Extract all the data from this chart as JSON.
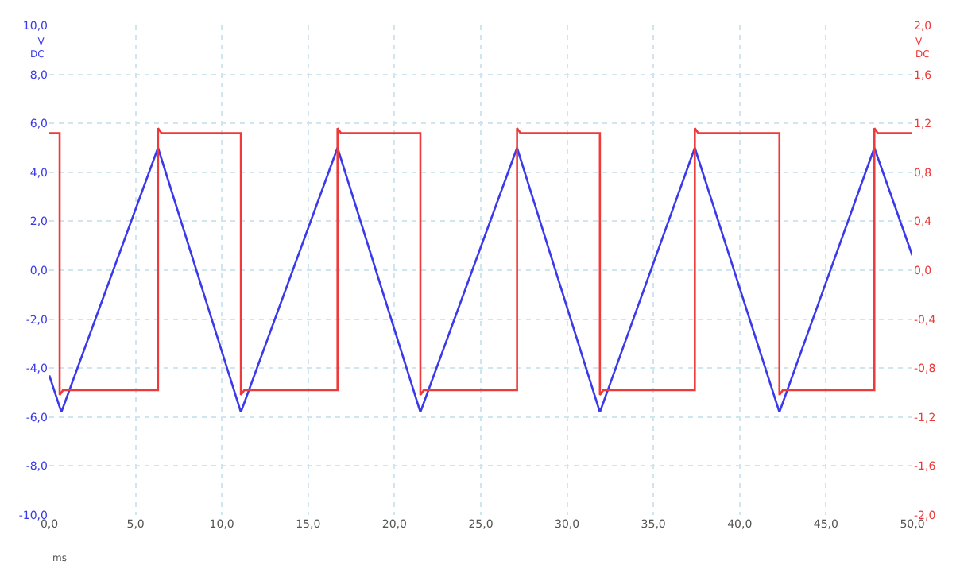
{
  "chart_data": {
    "type": "line",
    "xlabel": "ms",
    "ylabel": "V\nDC",
    "y2label": "V\nDC",
    "xlim": [
      0,
      50
    ],
    "xticks": [
      {
        "value": 0,
        "label": "0,0"
      },
      {
        "value": 5,
        "label": "5,0"
      },
      {
        "value": 10,
        "label": "10,0"
      },
      {
        "value": 15,
        "label": "15,0"
      },
      {
        "value": 20,
        "label": "20,0"
      },
      {
        "value": 25,
        "label": "25,0"
      },
      {
        "value": 30,
        "label": "30,0"
      },
      {
        "value": 35,
        "label": "35,0"
      },
      {
        "value": 40,
        "label": "40,0"
      },
      {
        "value": 45,
        "label": "45,0"
      },
      {
        "value": 50,
        "label": "50,0"
      }
    ],
    "ylim": [
      -10,
      10
    ],
    "yticks": [
      {
        "value": -10,
        "label": "-10,0"
      },
      {
        "value": -8,
        "label": "-8,0"
      },
      {
        "value": -6,
        "label": "-6,0"
      },
      {
        "value": -4,
        "label": "-4,0"
      },
      {
        "value": -2,
        "label": "-2,0"
      },
      {
        "value": 0,
        "label": "0,0"
      },
      {
        "value": 2,
        "label": "2,0"
      },
      {
        "value": 4,
        "label": "4,0"
      },
      {
        "value": 6,
        "label": "6,0"
      },
      {
        "value": 8,
        "label": "8,0"
      },
      {
        "value": 10,
        "label": "10,0"
      }
    ],
    "y2lim": [
      -2,
      2
    ],
    "y2ticks": [
      {
        "value": -2,
        "label": "-2,0"
      },
      {
        "value": -1.6,
        "label": "-1,6"
      },
      {
        "value": -1.2,
        "label": "-1,2"
      },
      {
        "value": -0.8,
        "label": "-0,8"
      },
      {
        "value": -0.4,
        "label": "-0,4"
      },
      {
        "value": 0,
        "label": "0,0"
      },
      {
        "value": 0.4,
        "label": "0,4"
      },
      {
        "value": 0.8,
        "label": "0,8"
      },
      {
        "value": 1.2,
        "label": "1,2"
      },
      {
        "value": 1.6,
        "label": "1,6"
      },
      {
        "value": 2,
        "label": "2,0"
      }
    ],
    "grid": true,
    "legend": false,
    "marker": "none",
    "line_style": "solid",
    "series": [
      {
        "color": "#3a3aea",
        "x": [
          0,
          0.7,
          6.3,
          11.1,
          16.7,
          21.5,
          27.1,
          31.9,
          37.4,
          42.3,
          47.8,
          50
        ],
        "values": [
          -4.3,
          -5.8,
          5.0,
          -5.8,
          5.0,
          -5.8,
          5.0,
          -5.8,
          5.0,
          -5.8,
          5.0,
          0.6
        ]
      },
      {
        "color": "#ee3a3a",
        "axis": "y2",
        "x": [
          0,
          0.6,
          0.6,
          0.8,
          6.3,
          6.3,
          6.5,
          11.1,
          11.1,
          11.3,
          16.7,
          16.7,
          16.9,
          21.5,
          21.5,
          21.7,
          27.1,
          27.1,
          27.3,
          31.9,
          31.9,
          32.1,
          37.4,
          37.4,
          37.6,
          42.3,
          42.3,
          42.5,
          47.8,
          47.8,
          48.0,
          50
        ],
        "values": [
          1.12,
          1.12,
          -1.02,
          -0.98,
          -0.98,
          1.16,
          1.12,
          1.12,
          -1.02,
          -0.98,
          -0.98,
          1.16,
          1.12,
          1.12,
          -1.02,
          -0.98,
          -0.98,
          1.16,
          1.12,
          1.12,
          -1.02,
          -0.98,
          -0.98,
          1.16,
          1.12,
          1.12,
          -1.02,
          -0.98,
          -0.98,
          1.16,
          1.12,
          1.12
        ]
      }
    ]
  }
}
